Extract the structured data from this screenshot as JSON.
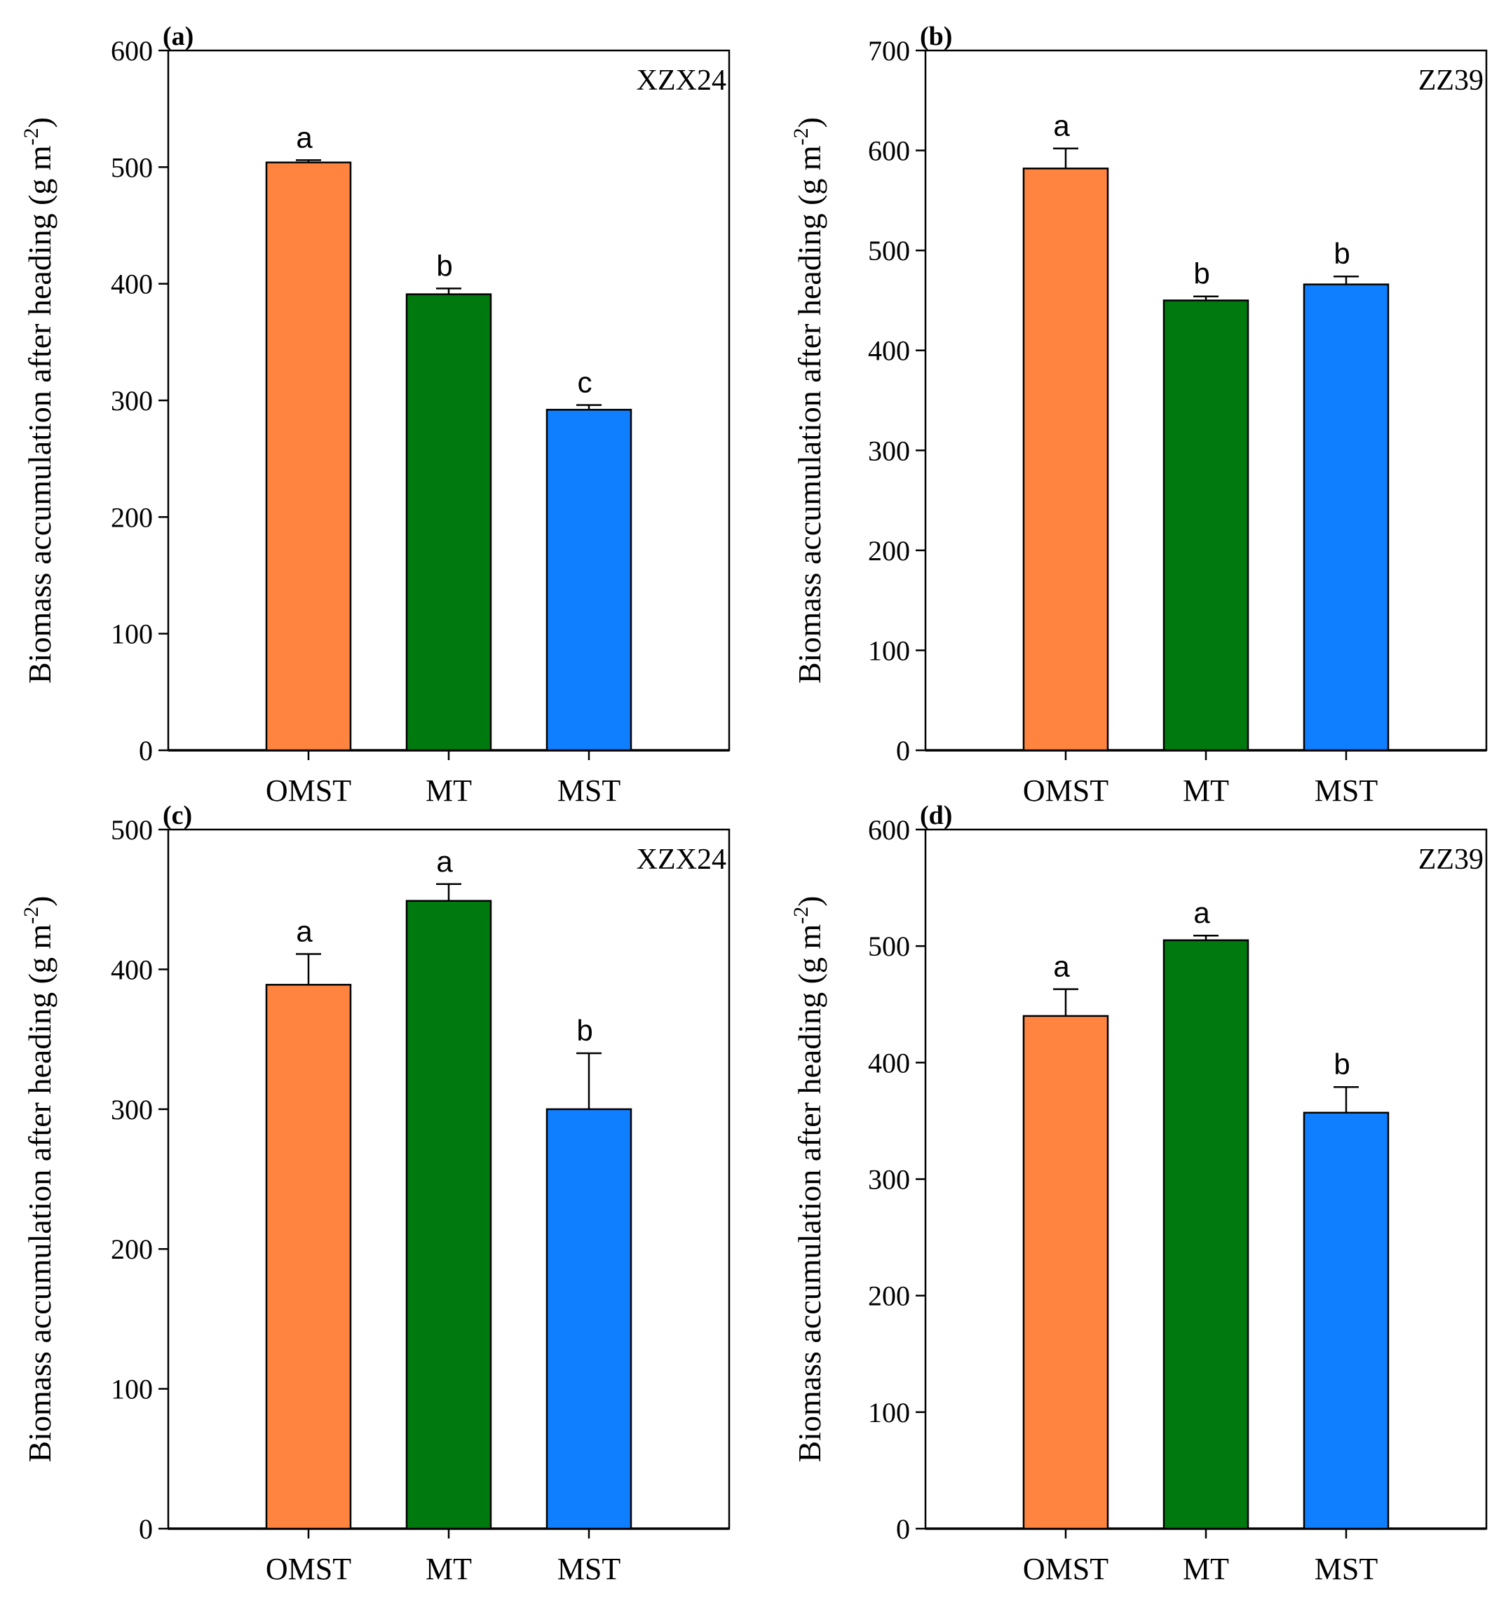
{
  "colors": {
    "OMST": "#FF8440",
    "MT": "#007A0F",
    "MST": "#0F7FFF"
  },
  "panels": [
    {
      "tag": "(a)",
      "variety": "XZX24",
      "ylabel": "Biomass accumulation after heading (g m",
      "ylabel_unit_exp": "-2",
      "ylabel_close": ")",
      "chart_data": {
        "type": "bar",
        "categories": [
          "OMST",
          "MT",
          "MST"
        ],
        "values": [
          504,
          391,
          292
        ],
        "errors": [
          2,
          5,
          4
        ],
        "letters": [
          "a",
          "b",
          "c"
        ],
        "ylim": [
          0,
          600
        ],
        "yticks": [
          0,
          100,
          200,
          300,
          400,
          500,
          600
        ]
      }
    },
    {
      "tag": "(b)",
      "variety": "ZZ39",
      "ylabel": "Biomass accumulation after heading (g m",
      "ylabel_unit_exp": "-2",
      "ylabel_close": ")",
      "chart_data": {
        "type": "bar",
        "categories": [
          "OMST",
          "MT",
          "MST"
        ],
        "values": [
          582,
          450,
          466
        ],
        "errors": [
          20,
          4,
          8
        ],
        "letters": [
          "a",
          "b",
          "b"
        ],
        "ylim": [
          0,
          700
        ],
        "yticks": [
          0,
          100,
          200,
          300,
          400,
          500,
          600,
          700
        ]
      }
    },
    {
      "tag": "(c)",
      "variety": "XZX24",
      "ylabel": "Biomass accumulation after heading (g m",
      "ylabel_unit_exp": "-2",
      "ylabel_close": ")",
      "chart_data": {
        "type": "bar",
        "categories": [
          "OMST",
          "MT",
          "MST"
        ],
        "values": [
          389,
          449,
          300
        ],
        "errors": [
          22,
          12,
          40
        ],
        "letters": [
          "a",
          "a",
          "b"
        ],
        "ylim": [
          0,
          500
        ],
        "yticks": [
          0,
          100,
          200,
          300,
          400,
          500
        ]
      }
    },
    {
      "tag": "(d)",
      "variety": "ZZ39",
      "ylabel": "Biomass accumulation after heading (g m",
      "ylabel_unit_exp": "-2",
      "ylabel_close": ")",
      "chart_data": {
        "type": "bar",
        "categories": [
          "OMST",
          "MT",
          "MST"
        ],
        "values": [
          440,
          505,
          357
        ],
        "errors": [
          23,
          4,
          22
        ],
        "letters": [
          "a",
          "a",
          "b"
        ],
        "ylim": [
          0,
          600
        ],
        "yticks": [
          0,
          100,
          200,
          300,
          400,
          500,
          600
        ]
      }
    }
  ]
}
